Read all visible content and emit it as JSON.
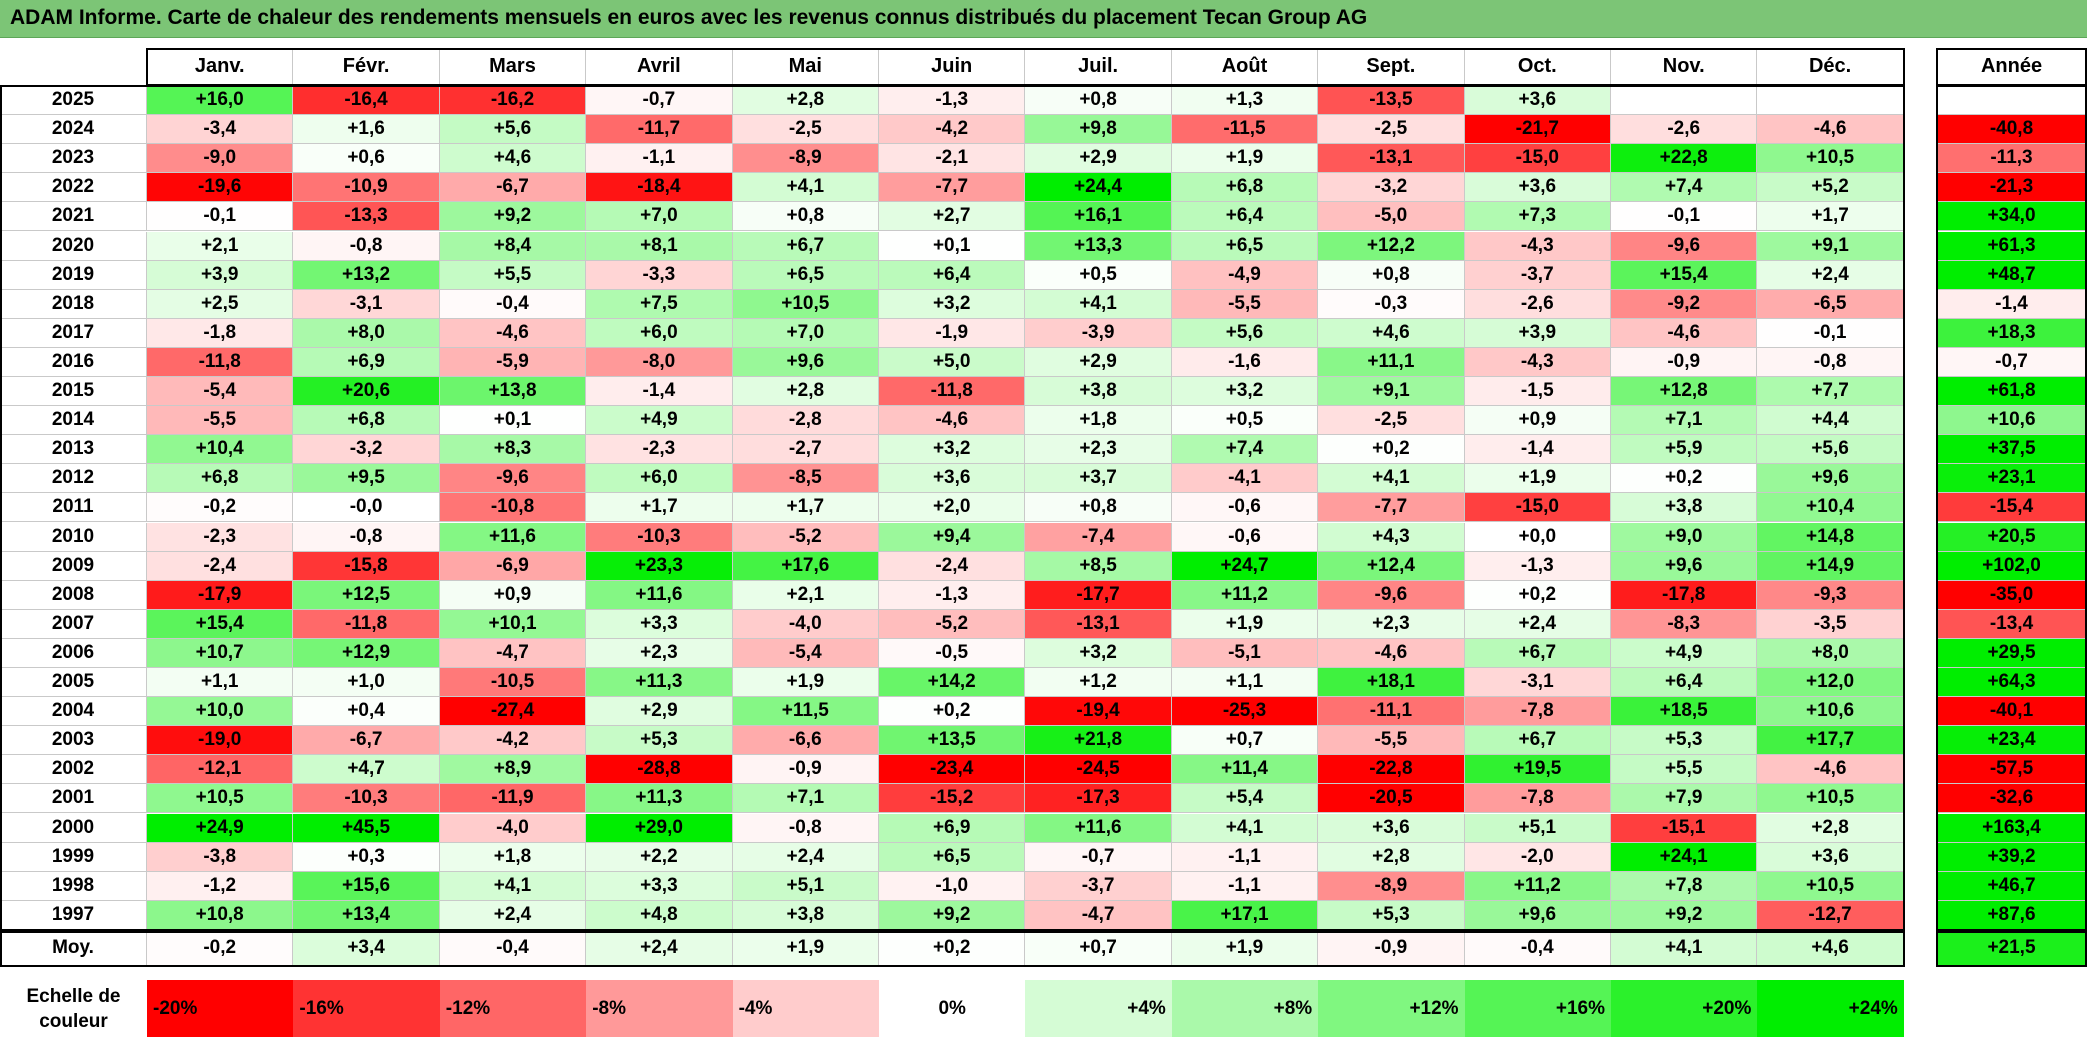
{
  "title": "ADAM Informe. Carte de chaleur des rendements mensuels en euros avec les revenus connus distribués du placement Tecan Group AG",
  "chart_data": {
    "type": "heatmap",
    "title": "ADAM Informe. Carte de chaleur des rendements mensuels en euros avec les revenus connus distribués du placement Tecan Group AG",
    "months": [
      "Janv.",
      "Févr.",
      "Mars",
      "Avril",
      "Mai",
      "Juin",
      "Juil.",
      "Août",
      "Sept.",
      "Oct.",
      "Nov.",
      "Déc."
    ],
    "annual_label": "Année",
    "rows": [
      {
        "year": "2025",
        "values": [
          "+16,0",
          "-16,4",
          "-16,2",
          "-0,7",
          "+2,8",
          "-1,3",
          "+0,8",
          "+1,3",
          "-13,5",
          "+3,6",
          "",
          ""
        ],
        "annual": ""
      },
      {
        "year": "2024",
        "values": [
          "-3,4",
          "+1,6",
          "+5,6",
          "-11,7",
          "-2,5",
          "-4,2",
          "+9,8",
          "-11,5",
          "-2,5",
          "-21,7",
          "-2,6",
          "-4,6"
        ],
        "annual": "-40,8"
      },
      {
        "year": "2023",
        "values": [
          "-9,0",
          "+0,6",
          "+4,6",
          "-1,1",
          "-8,9",
          "-2,1",
          "+2,9",
          "+1,9",
          "-13,1",
          "-15,0",
          "+22,8",
          "+10,5"
        ],
        "annual": "-11,3"
      },
      {
        "year": "2022",
        "values": [
          "-19,6",
          "-10,9",
          "-6,7",
          "-18,4",
          "+4,1",
          "-7,7",
          "+24,4",
          "+6,8",
          "-3,2",
          "+3,6",
          "+7,4",
          "+5,2"
        ],
        "annual": "-21,3"
      },
      {
        "year": "2021",
        "values": [
          "-0,1",
          "-13,3",
          "+9,2",
          "+7,0",
          "+0,8",
          "+2,7",
          "+16,1",
          "+6,4",
          "-5,0",
          "+7,3",
          "-0,1",
          "+1,7"
        ],
        "annual": "+34,0"
      },
      {
        "year": "2020",
        "values": [
          "+2,1",
          "-0,8",
          "+8,4",
          "+8,1",
          "+6,7",
          "+0,1",
          "+13,3",
          "+6,5",
          "+12,2",
          "-4,3",
          "-9,6",
          "+9,1"
        ],
        "annual": "+61,3"
      },
      {
        "year": "2019",
        "values": [
          "+3,9",
          "+13,2",
          "+5,5",
          "-3,3",
          "+6,5",
          "+6,4",
          "+0,5",
          "-4,9",
          "+0,8",
          "-3,7",
          "+15,4",
          "+2,4"
        ],
        "annual": "+48,7"
      },
      {
        "year": "2018",
        "values": [
          "+2,5",
          "-3,1",
          "-0,4",
          "+7,5",
          "+10,5",
          "+3,2",
          "+4,1",
          "-5,5",
          "-0,3",
          "-2,6",
          "-9,2",
          "-6,5"
        ],
        "annual": "-1,4"
      },
      {
        "year": "2017",
        "values": [
          "-1,8",
          "+8,0",
          "-4,6",
          "+6,0",
          "+7,0",
          "-1,9",
          "-3,9",
          "+5,6",
          "+4,6",
          "+3,9",
          "-4,6",
          "-0,1"
        ],
        "annual": "+18,3"
      },
      {
        "year": "2016",
        "values": [
          "-11,8",
          "+6,9",
          "-5,9",
          "-8,0",
          "+9,6",
          "+5,0",
          "+2,9",
          "-1,6",
          "+11,1",
          "-4,3",
          "-0,9",
          "-0,8"
        ],
        "annual": "-0,7"
      },
      {
        "year": "2015",
        "values": [
          "-5,4",
          "+20,6",
          "+13,8",
          "-1,4",
          "+2,8",
          "-11,8",
          "+3,8",
          "+3,2",
          "+9,1",
          "-1,5",
          "+12,8",
          "+7,7"
        ],
        "annual": "+61,8"
      },
      {
        "year": "2014",
        "values": [
          "-5,5",
          "+6,8",
          "+0,1",
          "+4,9",
          "-2,8",
          "-4,6",
          "+1,8",
          "+0,5",
          "-2,5",
          "+0,9",
          "+7,1",
          "+4,4"
        ],
        "annual": "+10,6"
      },
      {
        "year": "2013",
        "values": [
          "+10,4",
          "-3,2",
          "+8,3",
          "-2,3",
          "-2,7",
          "+3,2",
          "+2,3",
          "+7,4",
          "+0,2",
          "-1,4",
          "+5,9",
          "+5,6"
        ],
        "annual": "+37,5"
      },
      {
        "year": "2012",
        "values": [
          "+6,8",
          "+9,5",
          "-9,6",
          "+6,0",
          "-8,5",
          "+3,6",
          "+3,7",
          "-4,1",
          "+4,1",
          "+1,9",
          "+0,2",
          "+9,6"
        ],
        "annual": "+23,1"
      },
      {
        "year": "2011",
        "values": [
          "-0,2",
          "-0,0",
          "-10,8",
          "+1,7",
          "+1,7",
          "+2,0",
          "+0,8",
          "-0,6",
          "-7,7",
          "-15,0",
          "+3,8",
          "+10,4"
        ],
        "annual": "-15,4"
      },
      {
        "year": "2010",
        "values": [
          "-2,3",
          "-0,8",
          "+11,6",
          "-10,3",
          "-5,2",
          "+9,4",
          "-7,4",
          "-0,6",
          "+4,3",
          "+0,0",
          "+9,0",
          "+14,8"
        ],
        "annual": "+20,5"
      },
      {
        "year": "2009",
        "values": [
          "-2,4",
          "-15,8",
          "-6,9",
          "+23,3",
          "+17,6",
          "-2,4",
          "+8,5",
          "+24,7",
          "+12,4",
          "-1,3",
          "+9,6",
          "+14,9"
        ],
        "annual": "+102,0"
      },
      {
        "year": "2008",
        "values": [
          "-17,9",
          "+12,5",
          "+0,9",
          "+11,6",
          "+2,1",
          "-1,3",
          "-17,7",
          "+11,2",
          "-9,6",
          "+0,2",
          "-17,8",
          "-9,3"
        ],
        "annual": "-35,0"
      },
      {
        "year": "2007",
        "values": [
          "+15,4",
          "-11,8",
          "+10,1",
          "+3,3",
          "-4,0",
          "-5,2",
          "-13,1",
          "+1,9",
          "+2,3",
          "+2,4",
          "-8,3",
          "-3,5"
        ],
        "annual": "-13,4"
      },
      {
        "year": "2006",
        "values": [
          "+10,7",
          "+12,9",
          "-4,7",
          "+2,3",
          "-5,4",
          "-0,5",
          "+3,2",
          "-5,1",
          "-4,6",
          "+6,7",
          "+4,9",
          "+8,0"
        ],
        "annual": "+29,5"
      },
      {
        "year": "2005",
        "values": [
          "+1,1",
          "+1,0",
          "-10,5",
          "+11,3",
          "+1,9",
          "+14,2",
          "+1,2",
          "+1,1",
          "+18,1",
          "-3,1",
          "+6,4",
          "+12,0"
        ],
        "annual": "+64,3"
      },
      {
        "year": "2004",
        "values": [
          "+10,0",
          "+0,4",
          "-27,4",
          "+2,9",
          "+11,5",
          "+0,2",
          "-19,4",
          "-25,3",
          "-11,1",
          "-7,8",
          "+18,5",
          "+10,6"
        ],
        "annual": "-40,1"
      },
      {
        "year": "2003",
        "values": [
          "-19,0",
          "-6,7",
          "-4,2",
          "+5,3",
          "-6,6",
          "+13,5",
          "+21,8",
          "+0,7",
          "-5,5",
          "+6,7",
          "+5,3",
          "+17,7"
        ],
        "annual": "+23,4"
      },
      {
        "year": "2002",
        "values": [
          "-12,1",
          "+4,7",
          "+8,9",
          "-28,8",
          "-0,9",
          "-23,4",
          "-24,5",
          "+11,4",
          "-22,8",
          "+19,5",
          "+5,5",
          "-4,6"
        ],
        "annual": "-57,5"
      },
      {
        "year": "2001",
        "values": [
          "+10,5",
          "-10,3",
          "-11,9",
          "+11,3",
          "+7,1",
          "-15,2",
          "-17,3",
          "+5,4",
          "-20,5",
          "-7,8",
          "+7,9",
          "+10,5"
        ],
        "annual": "-32,6"
      },
      {
        "year": "2000",
        "values": [
          "+24,9",
          "+45,5",
          "-4,0",
          "+29,0",
          "-0,8",
          "+6,9",
          "+11,6",
          "+4,1",
          "+3,6",
          "+5,1",
          "-15,1",
          "+2,8"
        ],
        "annual": "+163,4"
      },
      {
        "year": "1999",
        "values": [
          "-3,8",
          "+0,3",
          "+1,8",
          "+2,2",
          "+2,4",
          "+6,5",
          "-0,7",
          "-1,1",
          "+2,8",
          "-2,0",
          "+24,1",
          "+3,6"
        ],
        "annual": "+39,2"
      },
      {
        "year": "1998",
        "values": [
          "-1,2",
          "+15,6",
          "+4,1",
          "+3,3",
          "+5,1",
          "-1,0",
          "-3,7",
          "-1,1",
          "-8,9",
          "+11,2",
          "+7,8",
          "+10,5"
        ],
        "annual": "+46,7"
      },
      {
        "year": "1997",
        "values": [
          "+10,8",
          "+13,4",
          "+2,4",
          "+4,8",
          "+3,8",
          "+9,2",
          "-4,7",
          "+17,1",
          "+5,3",
          "+9,6",
          "+9,2",
          "-12,7"
        ],
        "annual": "+87,6"
      }
    ],
    "average_label": "Moy.",
    "average": {
      "values": [
        "-0,2",
        "+3,4",
        "-0,4",
        "+2,4",
        "+1,9",
        "+0,2",
        "+0,7",
        "+1,9",
        "-0,9",
        "-0,4",
        "+4,1",
        "+4,6"
      ],
      "annual": "+21,5"
    },
    "color_scale": {
      "label": "Echelle de couleur",
      "stops": [
        "-20%",
        "-16%",
        "-12%",
        "-8%",
        "-4%",
        "0%",
        "+4%",
        "+8%",
        "+12%",
        "+16%",
        "+20%",
        "+24%"
      ],
      "negative_color": "#ff0000",
      "neutral_color": "#ffffff",
      "positive_color": "#00ee00"
    }
  }
}
